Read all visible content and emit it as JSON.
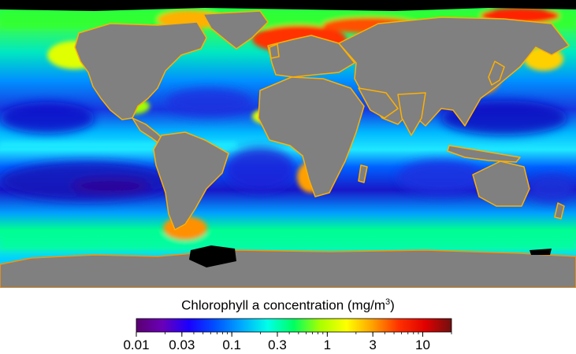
{
  "legend": {
    "title": "Chlorophyll a concentration (mg/m",
    "title_exponent": "3",
    "title_close": ")",
    "scale": "log",
    "range": [
      0.01,
      20
    ],
    "major_ticks": [
      {
        "value": 0.01,
        "label": "0.01"
      },
      {
        "value": 0.03,
        "label": "0.03"
      },
      {
        "value": 0.1,
        "label": "0.1"
      },
      {
        "value": 0.3,
        "label": "0.3"
      },
      {
        "value": 1,
        "label": "1"
      },
      {
        "value": 3,
        "label": "3"
      },
      {
        "value": 10,
        "label": "10"
      }
    ],
    "colormap": [
      "#5a0070",
      "#6a00b8",
      "#1a00ff",
      "#0050ff",
      "#00a8ff",
      "#00ffe8",
      "#00ff60",
      "#a8ff00",
      "#ffff00",
      "#ffa000",
      "#ff3000",
      "#e00000",
      "#701010"
    ]
  },
  "map": {
    "land_color": "#808080",
    "no_data_color": "#000000",
    "ocean_colors": {
      "very_low": "#1010c0",
      "low": "#0060ff",
      "medium": "#00d0ff",
      "high": "#00ff80",
      "very_high": "#e0ff00",
      "extreme": "#ff2000"
    }
  }
}
